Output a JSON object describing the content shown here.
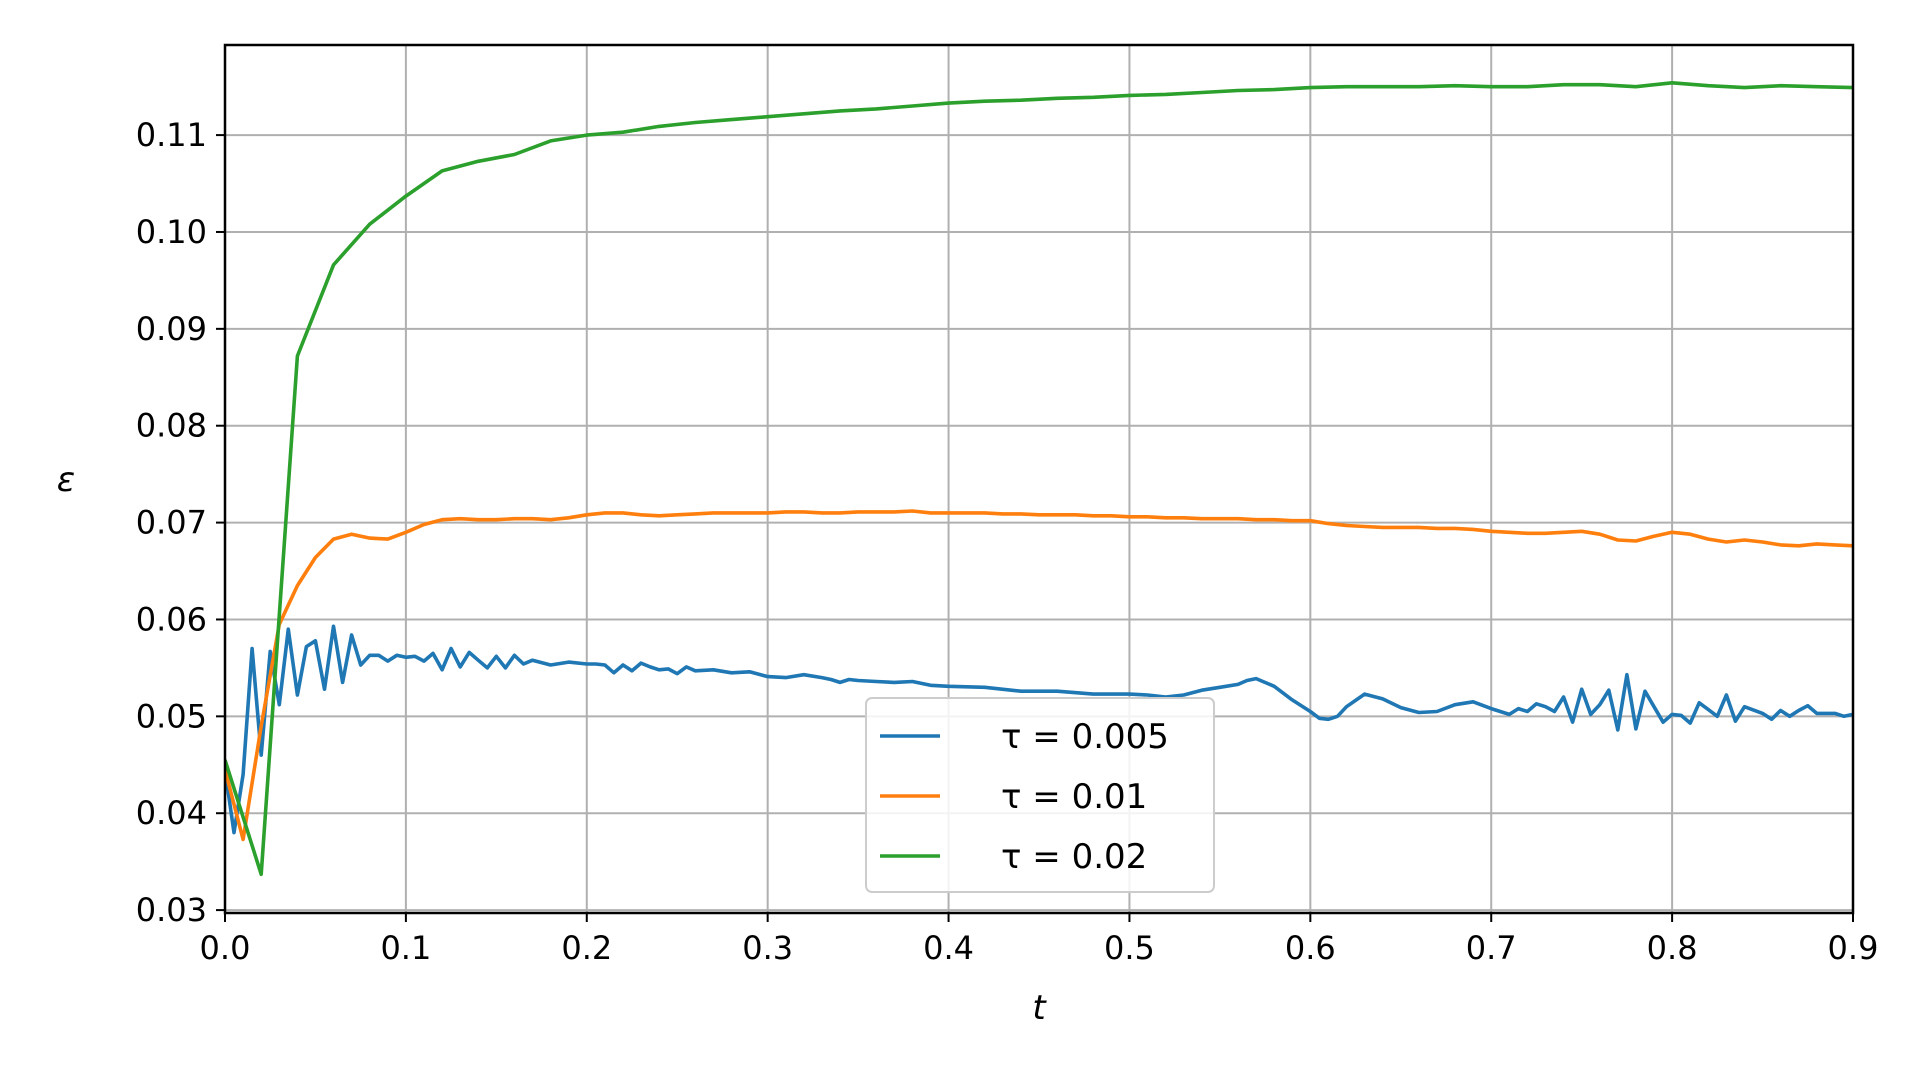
{
  "chart_data": {
    "type": "line",
    "title": "",
    "xlabel": "t",
    "ylabel": "ε",
    "xlim": [
      0.0,
      0.9
    ],
    "ylim": [
      0.0297,
      0.1193
    ],
    "grid": true,
    "legend_position": "lower-center",
    "x_ticks": [
      "0.0",
      "0.1",
      "0.2",
      "0.3",
      "0.4",
      "0.5",
      "0.6",
      "0.7",
      "0.8",
      "0.9"
    ],
    "y_ticks": [
      "0.03",
      "0.04",
      "0.05",
      "0.06",
      "0.07",
      "0.08",
      "0.09",
      "0.10",
      "0.11"
    ],
    "series": [
      {
        "name": "τ = 0.005",
        "color": "#1f77b4",
        "x": [
          0.0,
          0.005,
          0.01,
          0.015,
          0.02,
          0.025,
          0.03,
          0.035,
          0.04,
          0.045,
          0.05,
          0.055,
          0.06,
          0.065,
          0.07,
          0.075,
          0.08,
          0.085,
          0.09,
          0.095,
          0.1,
          0.105,
          0.11,
          0.115,
          0.12,
          0.125,
          0.13,
          0.135,
          0.14,
          0.145,
          0.15,
          0.155,
          0.16,
          0.165,
          0.17,
          0.18,
          0.19,
          0.2,
          0.205,
          0.21,
          0.215,
          0.22,
          0.225,
          0.23,
          0.235,
          0.24,
          0.245,
          0.25,
          0.255,
          0.26,
          0.27,
          0.28,
          0.29,
          0.3,
          0.31,
          0.32,
          0.33,
          0.335,
          0.34,
          0.345,
          0.35,
          0.36,
          0.37,
          0.38,
          0.39,
          0.4,
          0.42,
          0.44,
          0.46,
          0.48,
          0.5,
          0.51,
          0.52,
          0.53,
          0.54,
          0.55,
          0.56,
          0.565,
          0.57,
          0.58,
          0.59,
          0.6,
          0.605,
          0.61,
          0.615,
          0.62,
          0.63,
          0.64,
          0.65,
          0.66,
          0.67,
          0.68,
          0.69,
          0.7,
          0.71,
          0.715,
          0.72,
          0.725,
          0.73,
          0.735,
          0.74,
          0.745,
          0.75,
          0.755,
          0.76,
          0.765,
          0.77,
          0.775,
          0.78,
          0.785,
          0.79,
          0.795,
          0.8,
          0.805,
          0.81,
          0.815,
          0.82,
          0.825,
          0.83,
          0.835,
          0.84,
          0.85,
          0.855,
          0.86,
          0.865,
          0.87,
          0.875,
          0.88,
          0.89,
          0.895,
          0.9
        ],
        "y": [
          0.0445,
          0.038,
          0.044,
          0.057,
          0.046,
          0.0567,
          0.0512,
          0.059,
          0.0522,
          0.0572,
          0.0578,
          0.0528,
          0.0593,
          0.0535,
          0.0584,
          0.0553,
          0.0563,
          0.0563,
          0.0557,
          0.0563,
          0.0561,
          0.0562,
          0.0557,
          0.0565,
          0.0548,
          0.057,
          0.0551,
          0.0566,
          0.0558,
          0.055,
          0.0562,
          0.055,
          0.0563,
          0.0554,
          0.0558,
          0.0553,
          0.0556,
          0.0554,
          0.0554,
          0.0553,
          0.0545,
          0.0553,
          0.0547,
          0.0555,
          0.0551,
          0.0548,
          0.0549,
          0.0544,
          0.0551,
          0.0547,
          0.0548,
          0.0545,
          0.0546,
          0.0541,
          0.054,
          0.0543,
          0.054,
          0.0538,
          0.0535,
          0.0538,
          0.0537,
          0.0536,
          0.0535,
          0.0536,
          0.0532,
          0.0531,
          0.053,
          0.0526,
          0.0526,
          0.0523,
          0.0523,
          0.0522,
          0.052,
          0.0522,
          0.0527,
          0.053,
          0.0533,
          0.0537,
          0.0539,
          0.0531,
          0.0517,
          0.0505,
          0.0498,
          0.0497,
          0.05,
          0.051,
          0.0523,
          0.0518,
          0.0509,
          0.0504,
          0.0505,
          0.0512,
          0.0515,
          0.0508,
          0.0502,
          0.0508,
          0.0505,
          0.0513,
          0.051,
          0.0505,
          0.052,
          0.0494,
          0.0528,
          0.0502,
          0.0512,
          0.0527,
          0.0486,
          0.0543,
          0.0487,
          0.0526,
          0.051,
          0.0494,
          0.0502,
          0.0501,
          0.0493,
          0.0514,
          0.0507,
          0.05,
          0.0522,
          0.0495,
          0.051,
          0.0503,
          0.0497,
          0.0506,
          0.05,
          0.0506,
          0.0511,
          0.0503,
          0.0503,
          0.05,
          0.0502
        ]
      },
      {
        "name": "τ = 0.01",
        "color": "#ff7f0e",
        "x": [
          0.0,
          0.01,
          0.02,
          0.03,
          0.04,
          0.05,
          0.06,
          0.07,
          0.08,
          0.09,
          0.1,
          0.11,
          0.12,
          0.13,
          0.14,
          0.15,
          0.16,
          0.17,
          0.18,
          0.19,
          0.2,
          0.21,
          0.22,
          0.23,
          0.24,
          0.25,
          0.26,
          0.27,
          0.28,
          0.29,
          0.3,
          0.31,
          0.32,
          0.33,
          0.34,
          0.35,
          0.36,
          0.37,
          0.38,
          0.39,
          0.4,
          0.41,
          0.42,
          0.43,
          0.44,
          0.45,
          0.46,
          0.47,
          0.48,
          0.49,
          0.5,
          0.51,
          0.52,
          0.53,
          0.54,
          0.55,
          0.56,
          0.57,
          0.58,
          0.59,
          0.6,
          0.61,
          0.62,
          0.63,
          0.64,
          0.65,
          0.66,
          0.67,
          0.68,
          0.69,
          0.7,
          0.71,
          0.72,
          0.73,
          0.74,
          0.75,
          0.76,
          0.77,
          0.78,
          0.79,
          0.8,
          0.81,
          0.82,
          0.83,
          0.84,
          0.85,
          0.86,
          0.87,
          0.88,
          0.89,
          0.9
        ],
        "y": [
          0.0445,
          0.0373,
          0.049,
          0.0595,
          0.0635,
          0.0664,
          0.0683,
          0.0688,
          0.0684,
          0.0683,
          0.069,
          0.0698,
          0.0703,
          0.0704,
          0.0703,
          0.0703,
          0.0704,
          0.0704,
          0.0703,
          0.0705,
          0.0708,
          0.071,
          0.071,
          0.0708,
          0.0707,
          0.0708,
          0.0709,
          0.071,
          0.071,
          0.071,
          0.071,
          0.0711,
          0.0711,
          0.071,
          0.071,
          0.0711,
          0.0711,
          0.0711,
          0.0712,
          0.071,
          0.071,
          0.071,
          0.071,
          0.0709,
          0.0709,
          0.0708,
          0.0708,
          0.0708,
          0.0707,
          0.0707,
          0.0706,
          0.0706,
          0.0705,
          0.0705,
          0.0704,
          0.0704,
          0.0704,
          0.0703,
          0.0703,
          0.0702,
          0.0702,
          0.0699,
          0.0697,
          0.0696,
          0.0695,
          0.0695,
          0.0695,
          0.0694,
          0.0694,
          0.0693,
          0.0691,
          0.069,
          0.0689,
          0.0689,
          0.069,
          0.0691,
          0.0688,
          0.0682,
          0.0681,
          0.0686,
          0.069,
          0.0688,
          0.0683,
          0.068,
          0.0682,
          0.068,
          0.0677,
          0.0676,
          0.0678,
          0.0677,
          0.0676
        ]
      },
      {
        "name": "τ = 0.02",
        "color": "#2ca02c",
        "x": [
          0.0,
          0.02,
          0.04,
          0.06,
          0.08,
          0.1,
          0.12,
          0.14,
          0.16,
          0.18,
          0.2,
          0.22,
          0.24,
          0.26,
          0.28,
          0.3,
          0.32,
          0.34,
          0.36,
          0.38,
          0.4,
          0.42,
          0.44,
          0.46,
          0.48,
          0.5,
          0.52,
          0.54,
          0.56,
          0.58,
          0.6,
          0.62,
          0.64,
          0.66,
          0.68,
          0.7,
          0.72,
          0.74,
          0.76,
          0.78,
          0.8,
          0.82,
          0.84,
          0.86,
          0.88,
          0.9
        ],
        "y": [
          0.0455,
          0.0337,
          0.0872,
          0.0966,
          0.1008,
          0.1037,
          0.1063,
          0.1073,
          0.108,
          0.1094,
          0.11,
          0.1103,
          0.1109,
          0.1113,
          0.1116,
          0.1119,
          0.1122,
          0.1125,
          0.1127,
          0.113,
          0.1133,
          0.1135,
          0.1136,
          0.1138,
          0.1139,
          0.1141,
          0.1142,
          0.1144,
          0.1146,
          0.1147,
          0.1149,
          0.115,
          0.115,
          0.115,
          0.1151,
          0.115,
          0.115,
          0.1152,
          0.1152,
          0.115,
          0.1154,
          0.1151,
          0.1149,
          0.1151,
          0.115,
          0.1149
        ]
      }
    ]
  }
}
